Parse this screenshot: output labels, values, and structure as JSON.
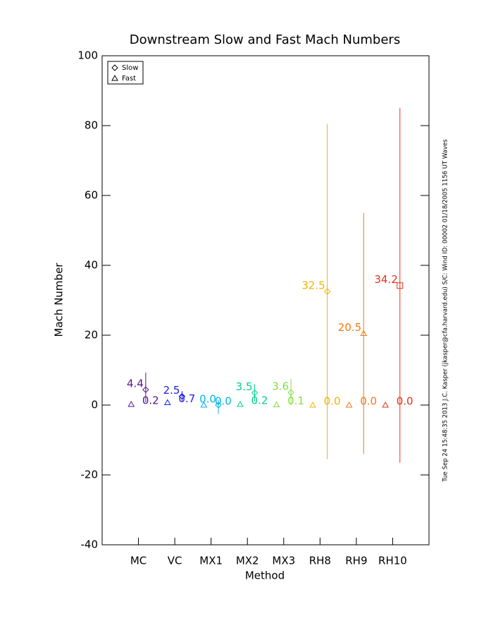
{
  "chart_data": {
    "type": "errorbar",
    "title": "Downstream Slow and Fast Mach Numbers",
    "x_label": "Method",
    "y_label": "Mach Number",
    "side_note": "Tue Sep 24 15:48:35 2013   J.C. Kasper (jkasper@cfa.harvard.edu)   S/C: Wind ID: 00002 01/18/2005   1156 UT Waves",
    "categories": [
      "MC",
      "VC",
      "MX1",
      "MX2",
      "MX3",
      "RH8",
      "RH9",
      "RH10"
    ],
    "colors": [
      "#5a1490",
      "#1e1ee6",
      "#00b4e6",
      "#00d28c",
      "#82e040",
      "#f0b400",
      "#f07814",
      "#e63214"
    ],
    "xlim": [
      0,
      9
    ],
    "ylim": [
      -40,
      100
    ],
    "yticks": [
      -40,
      -20,
      0,
      20,
      40,
      60,
      80,
      100
    ],
    "legend_position": "upper left",
    "series": [
      {
        "name": "Slow",
        "symbols": [
          "diamond",
          "diamond",
          "diamond",
          "diamond",
          "diamond",
          "diamond",
          "triangle",
          "square"
        ],
        "values": [
          4.4,
          2.5,
          0.0,
          3.5,
          3.6,
          32.5,
          20.5,
          34.2
        ],
        "value_labels": [
          "4.4",
          "2.5",
          "0.0",
          "3.5",
          "3.6",
          "32.5",
          "20.5",
          "34.2"
        ],
        "error_low": [
          0.8,
          1.0,
          -2.5,
          1.0,
          0.0,
          -15.5,
          -14.0,
          -16.5
        ],
        "error_high": [
          9.3,
          4.0,
          1.5,
          6.0,
          7.5,
          80.5,
          55.0,
          85.0
        ]
      },
      {
        "name": "Fast",
        "symbols": [
          "triangle",
          "triangle",
          "triangle",
          "triangle",
          "triangle",
          "triangle",
          "triangle",
          "triangle"
        ],
        "values": [
          0.2,
          0.7,
          0.0,
          0.2,
          0.1,
          0.0,
          0.0,
          0.0
        ],
        "value_labels": [
          "0.2",
          "0.7",
          "0.0",
          "0.2",
          "0.1",
          "0.0",
          "0.0",
          "0.0"
        ]
      }
    ]
  }
}
